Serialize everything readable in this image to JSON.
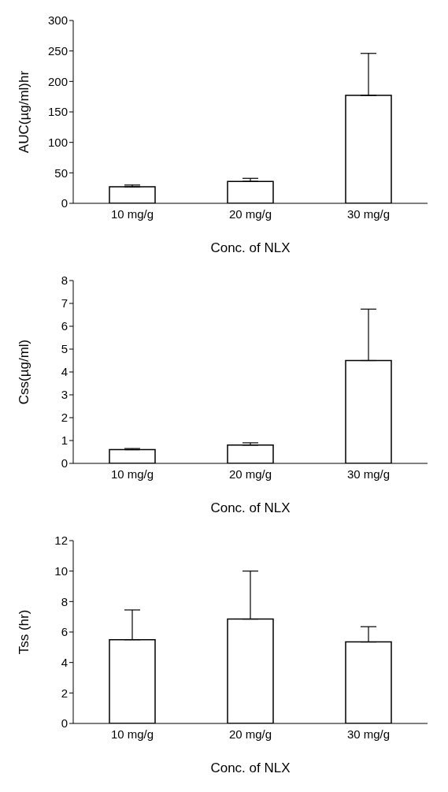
{
  "chart_data": [
    {
      "type": "bar",
      "ylabel": "AUC(µg/ml)hr",
      "xlabel": "Conc. of NLX",
      "categories": [
        "10 mg/g",
        "20 mg/g",
        "30 mg/g"
      ],
      "values": [
        27,
        36,
        177
      ],
      "errors": [
        [
          27,
          30
        ],
        [
          36,
          41
        ],
        [
          177,
          246
        ]
      ],
      "color": "#ffffff",
      "ylim": [
        0,
        300
      ],
      "yticks": [
        0,
        50,
        100,
        150,
        200,
        250,
        300
      ],
      "grid": false,
      "legend": false
    },
    {
      "type": "bar",
      "ylabel": "Css(µg/ml)",
      "xlabel": "Conc. of NLX",
      "categories": [
        "10 mg/g",
        "20 mg/g",
        "30 mg/g"
      ],
      "values": [
        0.6,
        0.8,
        4.5
      ],
      "errors": [
        [
          0.6,
          0.65
        ],
        [
          0.8,
          0.9
        ],
        [
          4.5,
          6.75
        ]
      ],
      "color": "#ffffff",
      "ylim": [
        0,
        8
      ],
      "yticks": [
        0,
        1,
        2,
        3,
        4,
        5,
        6,
        7,
        8
      ],
      "grid": false,
      "legend": false
    },
    {
      "type": "bar",
      "ylabel": "Tss (hr)",
      "xlabel": "Conc. of NLX",
      "categories": [
        "10 mg/g",
        "20 mg/g",
        "30 mg/g"
      ],
      "values": [
        5.5,
        6.85,
        5.35
      ],
      "errors": [
        [
          5.5,
          7.45
        ],
        [
          6.85,
          10
        ],
        [
          5.35,
          6.35
        ]
      ],
      "color": "#ffffff",
      "ylim": [
        0,
        12
      ],
      "yticks": [
        0,
        2,
        4,
        6,
        8,
        10,
        12
      ],
      "grid": false,
      "legend": false
    }
  ]
}
